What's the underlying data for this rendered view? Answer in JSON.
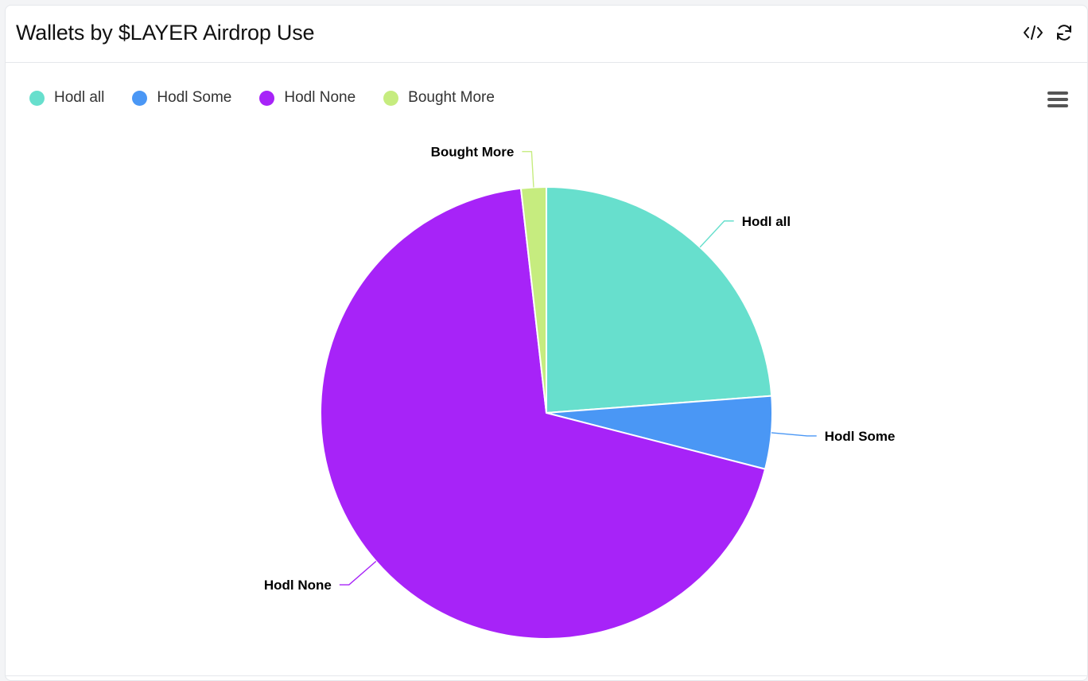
{
  "header": {
    "title": "Wallets by $LAYER Airdrop Use",
    "embed_icon": "code-icon",
    "refresh_icon": "refresh-icon"
  },
  "menu_icon": "hamburger-menu-icon",
  "chart_data": {
    "type": "pie",
    "title": "Wallets by $LAYER Airdrop Use",
    "slices": [
      {
        "label": "Hodl all",
        "value": 23.8,
        "color": "#67dfcd"
      },
      {
        "label": "Hodl Some",
        "value": 5.2,
        "color": "#4a97f5"
      },
      {
        "label": "Hodl None",
        "value": 69.2,
        "color": "#a723f8"
      },
      {
        "label": "Bought More",
        "value": 1.8,
        "color": "#c6ec7f"
      }
    ],
    "legend": "top-left",
    "data_labels": true
  }
}
